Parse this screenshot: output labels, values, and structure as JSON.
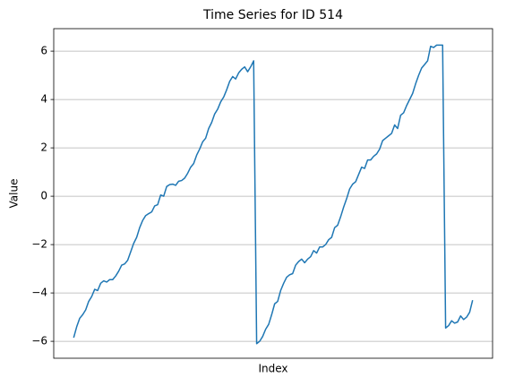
{
  "chart_data": {
    "type": "line",
    "title": "Time Series for ID 514",
    "xlabel": "Index",
    "ylabel": "Value",
    "series": [
      {
        "name": "ID 514",
        "color": "#1f77b4",
        "values": [
          -5.85,
          -5.4,
          -5.05,
          -4.9,
          -4.7,
          -4.35,
          -4.15,
          -3.85,
          -3.9,
          -3.6,
          -3.5,
          -3.55,
          -3.45,
          -3.45,
          -3.3,
          -3.1,
          -2.85,
          -2.8,
          -2.65,
          -2.3,
          -1.95,
          -1.7,
          -1.3,
          -1.0,
          -0.8,
          -0.72,
          -0.65,
          -0.4,
          -0.35,
          0.05,
          0.0,
          0.4,
          0.48,
          0.5,
          0.45,
          0.62,
          0.65,
          0.75,
          0.95,
          1.2,
          1.35,
          1.7,
          1.95,
          2.25,
          2.4,
          2.8,
          3.05,
          3.4,
          3.6,
          3.9,
          4.1,
          4.4,
          4.75,
          4.95,
          4.85,
          5.1,
          5.25,
          5.35,
          5.15,
          5.35,
          5.6,
          -6.1,
          -6.0,
          -5.8,
          -5.5,
          -5.3,
          -4.9,
          -4.45,
          -4.35,
          -3.9,
          -3.6,
          -3.35,
          -3.25,
          -3.2,
          -2.85,
          -2.7,
          -2.6,
          -2.75,
          -2.6,
          -2.5,
          -2.25,
          -2.35,
          -2.1,
          -2.1,
          -2.0,
          -1.8,
          -1.7,
          -1.3,
          -1.2,
          -0.85,
          -0.45,
          -0.1,
          0.3,
          0.5,
          0.6,
          0.9,
          1.2,
          1.15,
          1.5,
          1.5,
          1.65,
          1.75,
          1.95,
          2.3,
          2.4,
          2.5,
          2.6,
          2.95,
          2.8,
          3.35,
          3.45,
          3.75,
          4.0,
          4.25,
          4.65,
          5.0,
          5.3,
          5.45,
          5.6,
          6.2,
          6.15,
          6.25,
          6.25,
          6.25,
          -5.45,
          -5.35,
          -5.15,
          -5.25,
          -5.2,
          -4.95,
          -5.1,
          -5.0,
          -4.8,
          -4.3
        ]
      }
    ],
    "xlim": [
      -6.65,
      139.65
    ],
    "ylim": [
      -6.7,
      6.93
    ],
    "yticks": [
      {
        "value": -6,
        "label": "−6"
      },
      {
        "value": -4,
        "label": "−4"
      },
      {
        "value": -2,
        "label": "−2"
      },
      0,
      2,
      4,
      6
    ],
    "grid": "y"
  }
}
